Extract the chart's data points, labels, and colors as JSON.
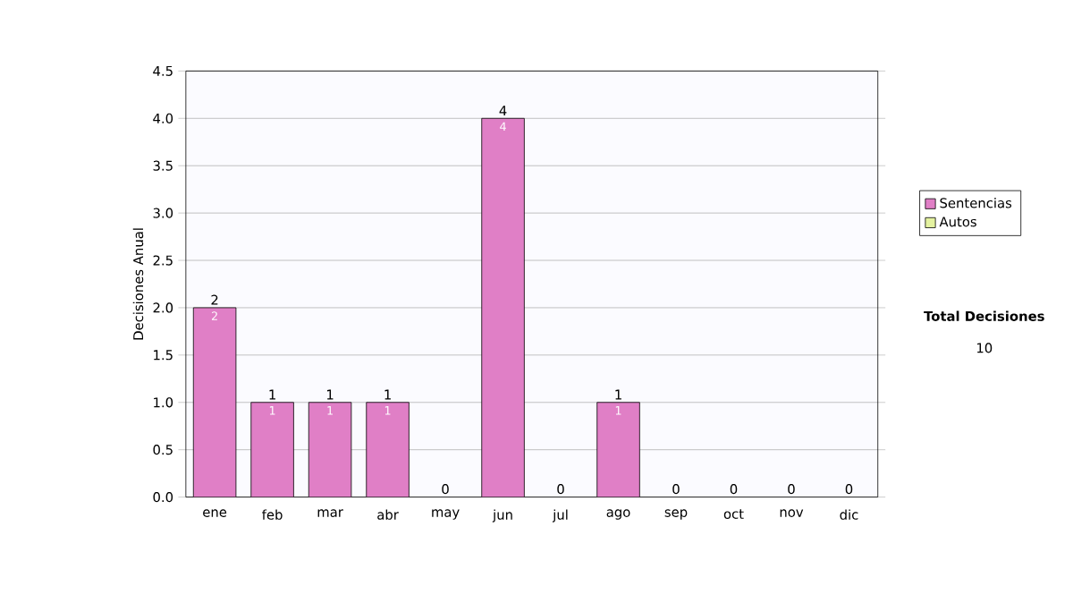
{
  "chart_data": {
    "type": "bar",
    "stacked": true,
    "ylabel": "Decisiones Anual",
    "categories": [
      "ene",
      "feb",
      "mar",
      "abr",
      "may",
      "jun",
      "jul",
      "ago",
      "sep",
      "oct",
      "nov",
      "dic"
    ],
    "series": [
      {
        "name": "Sentencias",
        "color": "#e07fc6",
        "values": [
          2,
          1,
          1,
          1,
          0,
          4,
          0,
          1,
          0,
          0,
          0,
          0
        ],
        "value_labels": [
          "2",
          "1",
          "1",
          "1",
          null,
          "4",
          null,
          "1",
          null,
          null,
          null,
          null
        ]
      },
      {
        "name": "Autos",
        "color": "#e4f2a0",
        "values": [
          0,
          0,
          0,
          0,
          0,
          0,
          0,
          0,
          0,
          0,
          0,
          0
        ]
      }
    ],
    "totals": [
      "2",
      "1",
      "1",
      "1",
      "0",
      "4",
      "0",
      "1",
      "0",
      "0",
      "0",
      "0"
    ],
    "ylim": [
      0,
      4.5
    ],
    "yticks": [
      {
        "value": 0,
        "label": "0.0"
      },
      {
        "value": 0.5,
        "label": "0.5"
      },
      {
        "value": 1,
        "label": "1.0"
      },
      {
        "value": 1.5,
        "label": "1.5"
      },
      {
        "value": 2,
        "label": "2.0"
      },
      {
        "value": 2.5,
        "label": "2.5"
      },
      {
        "value": 3,
        "label": "3.0"
      },
      {
        "value": 3.5,
        "label": "3.5"
      },
      {
        "value": 4,
        "label": "4.0"
      },
      {
        "value": 4.5,
        "label": "4.5"
      }
    ],
    "grid": "y",
    "legend": "right",
    "annotations": [
      "Total Decisiones",
      "10"
    ]
  }
}
